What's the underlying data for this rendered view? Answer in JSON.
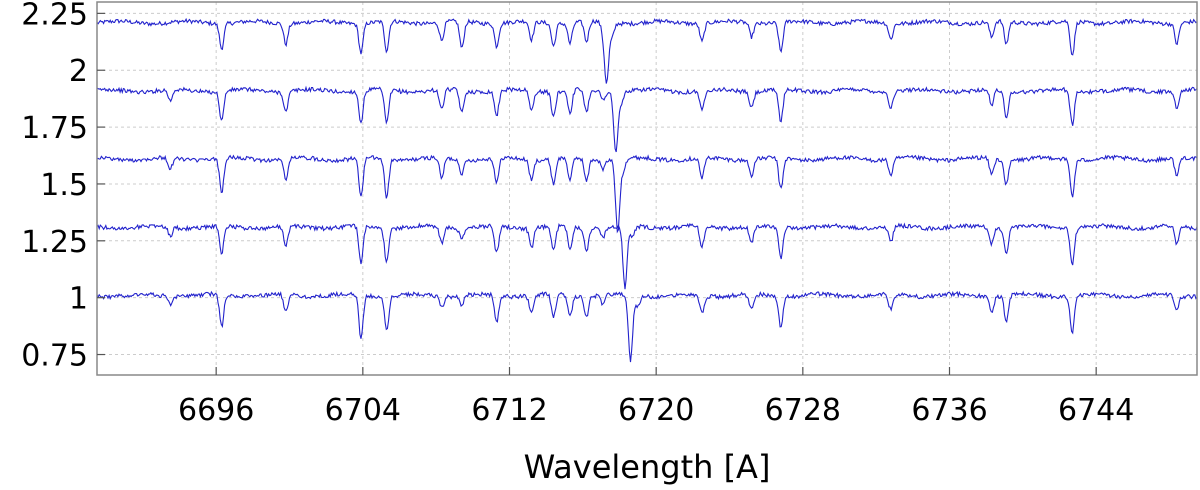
{
  "chart_data": {
    "type": "line",
    "title": "",
    "xlabel": "Wavelength [A]",
    "ylabel": "",
    "xlim": [
      6689.5,
      6749.5
    ],
    "ylim": [
      0.66,
      2.3
    ],
    "x_ticks": [
      6696,
      6704,
      6712,
      6720,
      6728,
      6736,
      6744
    ],
    "x_tick_labels": [
      "6696",
      "6704",
      "6712",
      "6720",
      "6728",
      "6736",
      "6744"
    ],
    "y_ticks": [
      0.75,
      1,
      1.25,
      1.5,
      1.75,
      2,
      2.25
    ],
    "y_tick_labels": [
      "0.75",
      "1",
      "1.25",
      "1.5",
      "1.75",
      "2",
      "2.25"
    ],
    "grid": true,
    "line_color": "#2222cc",
    "series": [
      {
        "baseline": 2.21,
        "shift": -0.95,
        "values": [
          [
            6690,
            2.2
          ],
          [
            6692,
            2.21
          ],
          [
            6694,
            2.2
          ],
          [
            6695.5,
            2.215
          ],
          [
            6696.3,
            2.1
          ],
          [
            6697.5,
            2.19
          ],
          [
            6699,
            2.2
          ],
          [
            6699.8,
            2.12
          ],
          [
            6701,
            2.2
          ],
          [
            6703,
            2.21
          ],
          [
            6703.9,
            2.08
          ],
          [
            6705,
            2.19
          ],
          [
            6705.3,
            2.08
          ],
          [
            6707,
            2.2
          ],
          [
            6708.3,
            2.13
          ],
          [
            6709.4,
            2.09
          ],
          [
            6710.5,
            2.19
          ],
          [
            6711.3,
            2.11
          ],
          [
            6712.5,
            2.2
          ],
          [
            6713.2,
            2.13
          ],
          [
            6714.4,
            2.11
          ],
          [
            6715.3,
            2.12
          ],
          [
            6716.2,
            2.12
          ],
          [
            6717.1,
            2.17
          ],
          [
            6717.3,
            1.95
          ],
          [
            6717.6,
            2.15
          ],
          [
            6718.6,
            2.2
          ],
          [
            6720,
            2.18
          ],
          [
            6721.5,
            2.2
          ],
          [
            6722.5,
            2.13
          ],
          [
            6724.2,
            2.23
          ],
          [
            6725.2,
            2.15
          ],
          [
            6726.8,
            2.08
          ],
          [
            6728,
            2.2
          ],
          [
            6731,
            2.19
          ],
          [
            6732.8,
            2.14
          ],
          [
            6735,
            2.2
          ],
          [
            6738.3,
            2.14
          ],
          [
            6739.1,
            2.11
          ],
          [
            6741,
            2.2
          ],
          [
            6742.7,
            2.06
          ],
          [
            6744,
            2.2
          ],
          [
            6747,
            2.19
          ],
          [
            6748.4,
            2.12
          ],
          [
            6749.5,
            2.21
          ]
        ]
      },
      {
        "baseline": 1.91,
        "shift": -0.45,
        "values": [
          [
            6690,
            1.9
          ],
          [
            6692,
            1.91
          ],
          [
            6693.5,
            1.86
          ],
          [
            6695,
            1.9
          ],
          [
            6696.3,
            1.78
          ],
          [
            6697.5,
            1.89
          ],
          [
            6699,
            1.9
          ],
          [
            6699.8,
            1.82
          ],
          [
            6701,
            1.9
          ],
          [
            6703,
            1.91
          ],
          [
            6703.9,
            1.77
          ],
          [
            6705,
            1.89
          ],
          [
            6705.3,
            1.76
          ],
          [
            6707,
            1.9
          ],
          [
            6708.3,
            1.82
          ],
          [
            6709.4,
            1.81
          ],
          [
            6710.5,
            1.89
          ],
          [
            6711.3,
            1.8
          ],
          [
            6712.5,
            1.9
          ],
          [
            6713.2,
            1.82
          ],
          [
            6714.4,
            1.8
          ],
          [
            6715.3,
            1.81
          ],
          [
            6716.2,
            1.81
          ],
          [
            6717.1,
            1.87
          ],
          [
            6717.8,
            1.64
          ],
          [
            6718.1,
            1.86
          ],
          [
            6718.6,
            1.9
          ],
          [
            6720,
            1.89
          ],
          [
            6721.5,
            1.9
          ],
          [
            6722.5,
            1.82
          ],
          [
            6724.2,
            1.92
          ],
          [
            6725.2,
            1.84
          ],
          [
            6726.8,
            1.77
          ],
          [
            6728,
            1.9
          ],
          [
            6731,
            1.89
          ],
          [
            6732.8,
            1.84
          ],
          [
            6735,
            1.9
          ],
          [
            6738.3,
            1.84
          ],
          [
            6739.1,
            1.79
          ],
          [
            6741,
            1.9
          ],
          [
            6742.7,
            1.76
          ],
          [
            6744,
            1.9
          ],
          [
            6747,
            1.89
          ],
          [
            6748.4,
            1.83
          ],
          [
            6749.5,
            1.91
          ]
        ]
      },
      {
        "baseline": 1.61,
        "shift": 0.05,
        "values": [
          [
            6690,
            1.6
          ],
          [
            6692,
            1.61
          ],
          [
            6693.5,
            1.56
          ],
          [
            6695,
            1.6
          ],
          [
            6696.3,
            1.46
          ],
          [
            6697.5,
            1.59
          ],
          [
            6699,
            1.6
          ],
          [
            6699.8,
            1.52
          ],
          [
            6701,
            1.6
          ],
          [
            6703,
            1.61
          ],
          [
            6703.9,
            1.44
          ],
          [
            6705,
            1.59
          ],
          [
            6705.3,
            1.44
          ],
          [
            6707,
            1.6
          ],
          [
            6708.3,
            1.52
          ],
          [
            6709.4,
            1.55
          ],
          [
            6710.5,
            1.59
          ],
          [
            6711.3,
            1.5
          ],
          [
            6712.5,
            1.6
          ],
          [
            6713.2,
            1.52
          ],
          [
            6714.4,
            1.5
          ],
          [
            6715.3,
            1.51
          ],
          [
            6716.2,
            1.51
          ],
          [
            6717.1,
            1.57
          ],
          [
            6717.9,
            1.29
          ],
          [
            6718.2,
            1.56
          ],
          [
            6718.6,
            1.6
          ],
          [
            6720,
            1.59
          ],
          [
            6721.5,
            1.6
          ],
          [
            6722.5,
            1.52
          ],
          [
            6724.2,
            1.62
          ],
          [
            6725.2,
            1.54
          ],
          [
            6726.8,
            1.47
          ],
          [
            6728,
            1.6
          ],
          [
            6731,
            1.59
          ],
          [
            6732.8,
            1.54
          ],
          [
            6735,
            1.6
          ],
          [
            6738.3,
            1.54
          ],
          [
            6739.1,
            1.5
          ],
          [
            6741,
            1.6
          ],
          [
            6742.7,
            1.45
          ],
          [
            6744,
            1.6
          ],
          [
            6747,
            1.59
          ],
          [
            6748.4,
            1.53
          ],
          [
            6749.5,
            1.61
          ]
        ]
      },
      {
        "baseline": 1.31,
        "shift": 0.55,
        "values": [
          [
            6690,
            1.3
          ],
          [
            6692,
            1.31
          ],
          [
            6693.5,
            1.27
          ],
          [
            6695,
            1.3
          ],
          [
            6696.3,
            1.19
          ],
          [
            6697.5,
            1.29
          ],
          [
            6699,
            1.3
          ],
          [
            6699.8,
            1.22
          ],
          [
            6701,
            1.3
          ],
          [
            6703,
            1.31
          ],
          [
            6703.9,
            1.15
          ],
          [
            6705,
            1.29
          ],
          [
            6705.3,
            1.16
          ],
          [
            6707,
            1.3
          ],
          [
            6708.3,
            1.24
          ],
          [
            6709.4,
            1.26
          ],
          [
            6710.5,
            1.29
          ],
          [
            6711.3,
            1.19
          ],
          [
            6712.5,
            1.3
          ],
          [
            6713.2,
            1.22
          ],
          [
            6714.4,
            1.2
          ],
          [
            6715.3,
            1.21
          ],
          [
            6716.2,
            1.21
          ],
          [
            6717.1,
            1.27
          ],
          [
            6718.3,
            1.04
          ],
          [
            6718.7,
            1.26
          ],
          [
            6719.1,
            1.3
          ],
          [
            6720,
            1.29
          ],
          [
            6721.5,
            1.3
          ],
          [
            6722.5,
            1.22
          ],
          [
            6724.2,
            1.31
          ],
          [
            6725.2,
            1.24
          ],
          [
            6726.8,
            1.17
          ],
          [
            6728,
            1.3
          ],
          [
            6731,
            1.29
          ],
          [
            6732.8,
            1.24
          ],
          [
            6735,
            1.3
          ],
          [
            6738.3,
            1.24
          ],
          [
            6739.1,
            1.2
          ],
          [
            6741,
            1.3
          ],
          [
            6742.7,
            1.15
          ],
          [
            6744,
            1.3
          ],
          [
            6747,
            1.29
          ],
          [
            6748.4,
            1.23
          ],
          [
            6749.5,
            1.28
          ]
        ]
      },
      {
        "baseline": 1.01,
        "shift": 1.05,
        "values": [
          [
            6690,
            1.0
          ],
          [
            6692,
            1.01
          ],
          [
            6693.5,
            0.97
          ],
          [
            6695,
            1.0
          ],
          [
            6696.3,
            0.87
          ],
          [
            6697.5,
            0.99
          ],
          [
            6699,
            1.0
          ],
          [
            6699.8,
            0.93
          ],
          [
            6701,
            1.0
          ],
          [
            6703,
            1.01
          ],
          [
            6703.9,
            0.82
          ],
          [
            6705,
            0.99
          ],
          [
            6705.3,
            0.86
          ],
          [
            6707,
            1.0
          ],
          [
            6708.3,
            0.96
          ],
          [
            6709.4,
            0.97
          ],
          [
            6710.5,
            0.99
          ],
          [
            6711.3,
            0.89
          ],
          [
            6712.5,
            1.0
          ],
          [
            6713.2,
            0.93
          ],
          [
            6714.4,
            0.91
          ],
          [
            6715.3,
            0.92
          ],
          [
            6716.2,
            0.92
          ],
          [
            6717.1,
            0.97
          ],
          [
            6718.6,
            0.72
          ],
          [
            6719,
            0.96
          ],
          [
            6719.5,
            1.0
          ],
          [
            6720,
            0.99
          ],
          [
            6721.5,
            1.0
          ],
          [
            6722.5,
            0.93
          ],
          [
            6724.2,
            1.01
          ],
          [
            6725.2,
            0.94
          ],
          [
            6726.8,
            0.87
          ],
          [
            6728,
            1.0
          ],
          [
            6731,
            0.99
          ],
          [
            6732.8,
            0.94
          ],
          [
            6735,
            1.0
          ],
          [
            6738.3,
            0.94
          ],
          [
            6739.1,
            0.9
          ],
          [
            6741,
            1.0
          ],
          [
            6742.7,
            0.85
          ],
          [
            6744,
            1.0
          ],
          [
            6747,
            0.99
          ],
          [
            6748.4,
            0.94
          ],
          [
            6749.5,
            0.98
          ]
        ]
      }
    ]
  }
}
